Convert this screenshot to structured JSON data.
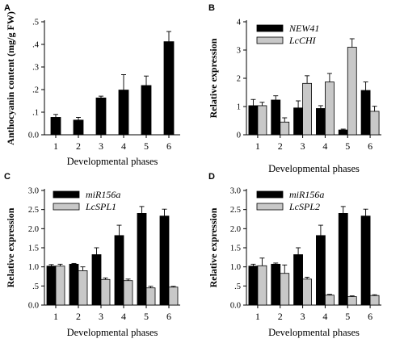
{
  "chart_data": [
    {
      "panel": "A",
      "type": "bar",
      "categories": [
        "1",
        "2",
        "3",
        "4",
        "5",
        "6"
      ],
      "series": [
        {
          "values": [
            0.077,
            0.065,
            0.163,
            0.198,
            0.218,
            0.412
          ],
          "errors": [
            0.013,
            0.012,
            0.008,
            0.068,
            0.042,
            0.045
          ]
        }
      ],
      "xlabel": "Developmental phases",
      "ylabel": "Anthocyanin content (mg/g FW)",
      "ylim": [
        0,
        0.5
      ],
      "yticks": [
        0,
        0.1,
        0.2,
        0.3,
        0.4,
        0.5
      ],
      "yticklabels": [
        "0.0",
        ".1",
        ".2",
        ".3",
        ".4",
        ".5"
      ],
      "colors": [
        "#000000"
      ]
    },
    {
      "panel": "B",
      "type": "bar",
      "categories": [
        "1",
        "2",
        "3",
        "4",
        "5",
        "6"
      ],
      "series": [
        {
          "name": "NEW41",
          "values": [
            1.03,
            1.23,
            0.95,
            0.93,
            0.17,
            1.57
          ],
          "errors": [
            0.22,
            0.15,
            0.25,
            0.1,
            0.03,
            0.3
          ]
        },
        {
          "name": "LcCHI",
          "values": [
            1.03,
            0.45,
            1.82,
            1.87,
            3.1,
            0.83
          ],
          "errors": [
            0.12,
            0.15,
            0.27,
            0.3,
            0.3,
            0.18
          ]
        }
      ],
      "xlabel": "Developmental phases",
      "ylabel": "Relative expression",
      "ylim": [
        0,
        4
      ],
      "yticks": [
        0,
        1,
        2,
        3,
        4
      ],
      "yticklabels": [
        "0",
        "1",
        "2",
        "3",
        "4"
      ],
      "legend": "top-left",
      "colors": [
        "#000000",
        "#c8c8c8"
      ]
    },
    {
      "panel": "C",
      "type": "bar",
      "categories": [
        "1",
        "2",
        "3",
        "4",
        "5",
        "6"
      ],
      "series": [
        {
          "name": "miR156a",
          "values": [
            1.02,
            1.07,
            1.32,
            1.82,
            2.4,
            2.33
          ],
          "errors": [
            0.04,
            0.02,
            0.18,
            0.27,
            0.18,
            0.18
          ]
        },
        {
          "name": "LcSPL1",
          "values": [
            1.02,
            0.9,
            0.67,
            0.64,
            0.45,
            0.47
          ],
          "errors": [
            0.05,
            0.1,
            0.04,
            0.04,
            0.04,
            0.02
          ]
        }
      ],
      "xlabel": "Developmental phases",
      "ylabel": "Relative expression",
      "ylim": [
        0,
        3
      ],
      "yticks": [
        0,
        0.5,
        1,
        1.5,
        2,
        2.5,
        3
      ],
      "yticklabels": [
        "0.0",
        ".5",
        "1.0",
        "1.5",
        "2.0",
        "2.5",
        "3.0"
      ],
      "legend": "top-left",
      "colors": [
        "#000000",
        "#c8c8c8"
      ]
    },
    {
      "panel": "D",
      "type": "bar",
      "categories": [
        "1",
        "2",
        "3",
        "4",
        "5",
        "6"
      ],
      "series": [
        {
          "name": "miR156a",
          "values": [
            1.02,
            1.07,
            1.32,
            1.82,
            2.4,
            2.33
          ],
          "errors": [
            0.05,
            0.03,
            0.18,
            0.27,
            0.18,
            0.18
          ]
        },
        {
          "name": "LcSPL2",
          "values": [
            1.03,
            0.83,
            0.68,
            0.26,
            0.22,
            0.25
          ],
          "errors": [
            0.2,
            0.22,
            0.05,
            0.02,
            0.02,
            0.02
          ]
        }
      ],
      "xlabel": "Developmental phases",
      "ylabel": "Relative expression",
      "ylim": [
        0,
        3
      ],
      "yticks": [
        0,
        0.5,
        1,
        1.5,
        2,
        2.5,
        3
      ],
      "yticklabels": [
        "0.0",
        ".5",
        "1.0",
        "1.5",
        "2.0",
        "2.5",
        "3.0"
      ],
      "legend": "top-left",
      "colors": [
        "#000000",
        "#c8c8c8"
      ]
    }
  ]
}
